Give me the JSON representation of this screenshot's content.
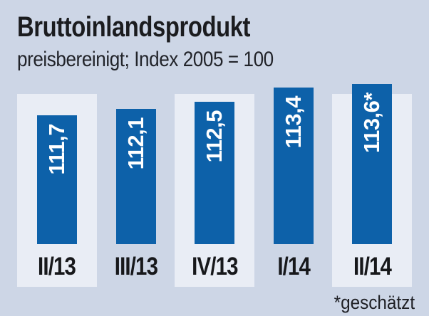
{
  "header": {
    "title": "Bruttoinlandsprodukt",
    "subtitle": "preisbereinigt; Index 2005 = 100"
  },
  "footnote": {
    "text": "*geschätzt"
  },
  "colors": {
    "background": "#cdd6e6",
    "highlight_column": "#e9edf5",
    "bar_blue": "#0d61a9",
    "bar_value_text": "#ffffff",
    "heading_text": "#1b1c1f",
    "label_text": "#17181b"
  },
  "chart_data": {
    "type": "bar",
    "title": "Bruttoinlandsprodukt",
    "subtitle": "preisbereinigt; Index 2005 = 100",
    "categories": [
      "II/13",
      "III/13",
      "IV/13",
      "I/14",
      "II/14"
    ],
    "values": [
      111.7,
      112.1,
      112.5,
      113.4,
      113.6
    ],
    "value_labels": [
      "111,7",
      "112,1",
      "112,5",
      "113,4",
      "113,6*"
    ],
    "xlabel": "",
    "ylabel": "Index 2005 = 100",
    "ylim": [
      103.9,
      115
    ],
    "grid": false,
    "legend": null,
    "value_label_orientation": "rotated-90-bottom-up",
    "highlight_columns": [
      0,
      2,
      4
    ],
    "estimated_point_index": 4,
    "footnote": "*geschätzt"
  }
}
